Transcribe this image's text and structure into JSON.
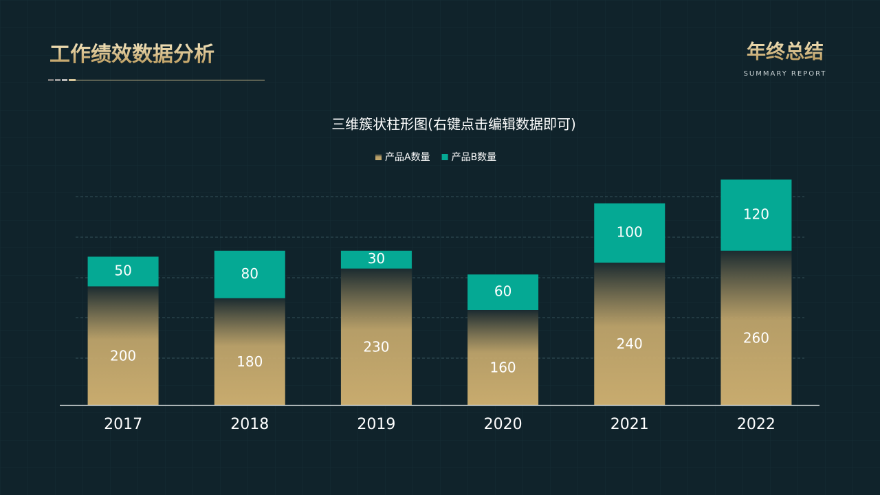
{
  "header": {
    "title": "工作绩效数据分析",
    "logo": "年终总结",
    "logo_subtitle": "SUMMARY REPORT"
  },
  "chart_data": {
    "type": "stacked_bar",
    "title": "三维簇状柱形图(右键点击编辑数据即可)",
    "categories": [
      "2017",
      "2018",
      "2019",
      "2020",
      "2021",
      "2022"
    ],
    "series": [
      {
        "name": "产品A数量",
        "color": "#c8ab6e",
        "values": [
          200,
          180,
          230,
          160,
          240,
          260
        ]
      },
      {
        "name": "产品B数量",
        "color": "#05a994",
        "values": [
          50,
          80,
          30,
          60,
          100,
          120
        ]
      }
    ],
    "ylim": [
      0,
      400
    ]
  }
}
